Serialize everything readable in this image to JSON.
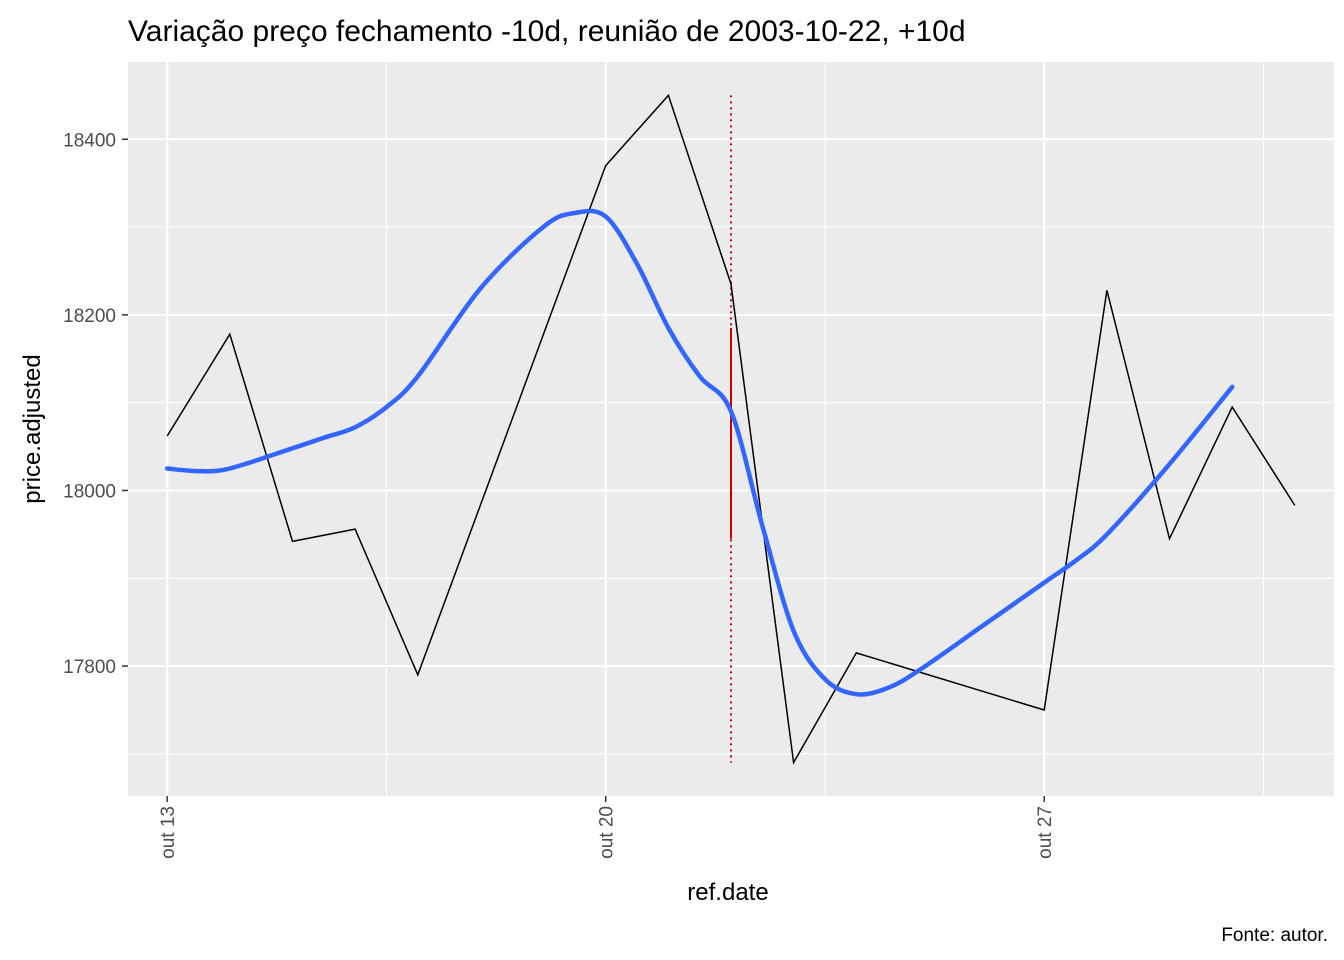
{
  "chart_data": {
    "type": "line",
    "title": "Variação preço fechamento -10d, reunião de 2003-10-22, +10d",
    "xlabel": "ref.date",
    "ylabel": "price.adjusted",
    "caption": "Fonte: autor.",
    "x_ticks": [
      {
        "label": "out 13",
        "date": "2003-10-13"
      },
      {
        "label": "out 20",
        "date": "2003-10-20"
      },
      {
        "label": "out 27",
        "date": "2003-10-27"
      }
    ],
    "y_ticks": [
      17800,
      18000,
      18200,
      18400
    ],
    "xlim": [
      "2003-10-12",
      "2003-10-31"
    ],
    "ylim": [
      17652,
      18488
    ],
    "grid": true,
    "series": [
      {
        "color": "#000000",
        "points": [
          {
            "x": "2003-10-13",
            "y": 18062
          },
          {
            "x": "2003-10-14",
            "y": 18178
          },
          {
            "x": "2003-10-15",
            "y": 17942
          },
          {
            "x": "2003-10-16",
            "y": 17956
          },
          {
            "x": "2003-10-17",
            "y": 17790
          },
          {
            "x": "2003-10-20",
            "y": 18370
          },
          {
            "x": "2003-10-21",
            "y": 18450
          },
          {
            "x": "2003-10-22",
            "y": 18235
          },
          {
            "x": "2003-10-23",
            "y": 17690
          },
          {
            "x": "2003-10-24",
            "y": 17815
          },
          {
            "x": "2003-10-27",
            "y": 17750
          },
          {
            "x": "2003-10-28",
            "y": 18228
          },
          {
            "x": "2003-10-29",
            "y": 17945
          },
          {
            "x": "2003-10-30",
            "y": 18095
          },
          {
            "x": "2003-10-31",
            "y": 17983
          }
        ]
      }
    ],
    "smooth": {
      "color": "#3366ff",
      "points": [
        {
          "x": "2003-10-13",
          "y": 18025
        },
        {
          "x": "2003-10-13.5",
          "y": 18022
        },
        {
          "x": "2003-10-14",
          "y": 18025
        },
        {
          "x": "2003-10-15",
          "y": 18048
        },
        {
          "x": "2003-10-15.5",
          "y": 18060
        },
        {
          "x": "2003-10-16",
          "y": 18072
        },
        {
          "x": "2003-10-16.5",
          "y": 18095
        },
        {
          "x": "2003-10-17",
          "y": 18130
        },
        {
          "x": "2003-10-18",
          "y": 18230
        },
        {
          "x": "2003-10-19",
          "y": 18300
        },
        {
          "x": "2003-10-19.5",
          "y": 18316
        },
        {
          "x": "2003-10-20",
          "y": 18312
        },
        {
          "x": "2003-10-20.5",
          "y": 18258
        },
        {
          "x": "2003-10-21",
          "y": 18185
        },
        {
          "x": "2003-10-21.5",
          "y": 18130
        },
        {
          "x": "2003-10-22",
          "y": 18090
        },
        {
          "x": "2003-10-22.5",
          "y": 17960
        },
        {
          "x": "2003-10-23",
          "y": 17840
        },
        {
          "x": "2003-10-23.5",
          "y": 17785
        },
        {
          "x": "2003-10-24",
          "y": 17768
        },
        {
          "x": "2003-10-24.5",
          "y": 17775
        },
        {
          "x": "2003-10-25",
          "y": 17795
        },
        {
          "x": "2003-10-26",
          "y": 17845
        },
        {
          "x": "2003-10-27",
          "y": 17895
        },
        {
          "x": "2003-10-27.5",
          "y": 17920
        },
        {
          "x": "2003-10-28",
          "y": 17950
        },
        {
          "x": "2003-10-29",
          "y": 18030
        },
        {
          "x": "2003-10-30",
          "y": 18118
        }
      ]
    },
    "reference_line": {
      "date": "2003-10-22",
      "color": "#cc0000",
      "solid_range": [
        17945,
        18185
      ],
      "dotted_range": [
        17690,
        18450
      ]
    }
  }
}
